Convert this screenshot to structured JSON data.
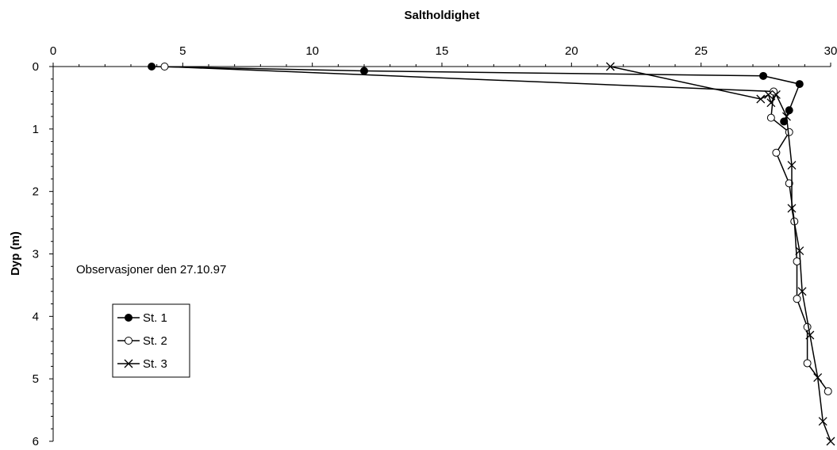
{
  "chart_data": {
    "type": "line",
    "title": "",
    "xlabel": "Saltholdighet",
    "ylabel": "Dyp (m)",
    "xlim": [
      0,
      30
    ],
    "ylim": [
      0,
      6
    ],
    "y_inverted": true,
    "x_axis_position": "top",
    "x_ticks": [
      "0",
      "5",
      "10",
      "15",
      "20",
      "25",
      "30"
    ],
    "y_ticks": [
      "0",
      "1",
      "2",
      "3",
      "4",
      "5",
      "6"
    ],
    "grid": false,
    "legend_position": "lower-left",
    "annotation": "Observasjoner den 27.10.97",
    "series": [
      {
        "name": "St. 1",
        "marker": "filled-circle",
        "points": [
          [
            3.8,
            0.0
          ],
          [
            12.0,
            0.07
          ],
          [
            27.4,
            0.15
          ],
          [
            28.8,
            0.28
          ],
          [
            28.4,
            0.7
          ],
          [
            28.2,
            0.88
          ]
        ]
      },
      {
        "name": "St. 2",
        "marker": "open-circle",
        "points": [
          [
            4.3,
            0.0
          ],
          [
            27.8,
            0.4
          ],
          [
            27.7,
            0.82
          ],
          [
            28.4,
            1.05
          ],
          [
            27.9,
            1.38
          ],
          [
            28.4,
            1.87
          ],
          [
            28.6,
            2.48
          ],
          [
            28.7,
            3.12
          ],
          [
            28.7,
            3.72
          ],
          [
            29.1,
            4.17
          ],
          [
            29.1,
            4.75
          ],
          [
            29.9,
            5.2
          ]
        ]
      },
      {
        "name": "St. 3",
        "marker": "x",
        "points": [
          [
            21.5,
            0.0
          ],
          [
            27.3,
            0.52
          ],
          [
            27.6,
            0.45
          ],
          [
            27.7,
            0.58
          ],
          [
            27.9,
            0.45
          ],
          [
            28.3,
            0.8
          ],
          [
            28.5,
            1.58
          ],
          [
            28.5,
            2.27
          ],
          [
            28.8,
            2.95
          ],
          [
            28.9,
            3.6
          ],
          [
            29.2,
            4.3
          ],
          [
            29.5,
            4.98
          ],
          [
            29.7,
            5.68
          ],
          [
            30.0,
            6.0
          ]
        ]
      }
    ]
  }
}
